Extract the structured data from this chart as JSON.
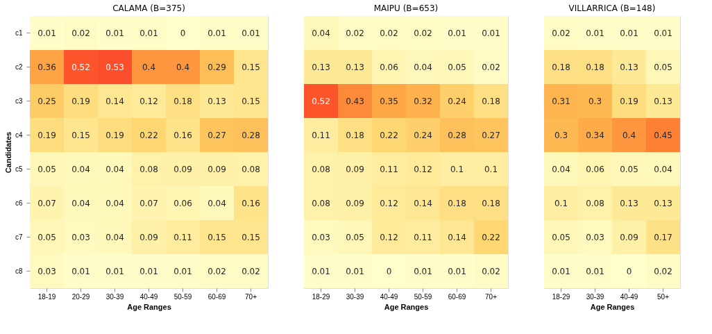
{
  "chart_data": [
    {
      "type": "heatmap",
      "title": "CALAMA (B=375)",
      "xlabel": "Age Ranges",
      "ylabel": "Candidates",
      "data_labels": true,
      "categories": [
        "18-19",
        "20-29",
        "30-39",
        "40-49",
        "50-59",
        "60-69",
        "70+"
      ],
      "y_categories": [
        "c1",
        "c2",
        "c3",
        "c4",
        "c5",
        "c6",
        "c7",
        "c8"
      ],
      "cells": [
        [
          0.01,
          0.02,
          0.01,
          0.01,
          0,
          0.01,
          0.01
        ],
        [
          0.36,
          0.52,
          0.53,
          0.4,
          0.4,
          0.29,
          0.15
        ],
        [
          0.25,
          0.19,
          0.14,
          0.12,
          0.18,
          0.13,
          0.15
        ],
        [
          0.19,
          0.15,
          0.19,
          0.22,
          0.16,
          0.27,
          0.28
        ],
        [
          0.05,
          0.04,
          0.04,
          0.08,
          0.09,
          0.09,
          0.08
        ],
        [
          0.07,
          0.04,
          0.04,
          0.07,
          0.06,
          0.04,
          0.16
        ],
        [
          0.05,
          0.03,
          0.04,
          0.09,
          0.11,
          0.15,
          0.15
        ],
        [
          0.03,
          0.01,
          0.01,
          0.01,
          0.01,
          0.02,
          0.02
        ]
      ]
    },
    {
      "type": "heatmap",
      "title": "MAIPU (B=653)",
      "xlabel": "Age Ranges",
      "data_labels": true,
      "tick_labels": "x",
      "categories": [
        "18-29",
        "30-39",
        "40-49",
        "50-59",
        "60-69",
        "70+"
      ],
      "y_categories": [
        "c1",
        "c2",
        "c3",
        "c4",
        "c5",
        "c6",
        "c7",
        "c8"
      ],
      "cells": [
        [
          0.04,
          0.02,
          0.02,
          0.02,
          0.01,
          0.01
        ],
        [
          0.13,
          0.13,
          0.06,
          0.04,
          0.05,
          0.02
        ],
        [
          0.52,
          0.43,
          0.35,
          0.32,
          0.24,
          0.18
        ],
        [
          0.11,
          0.18,
          0.22,
          0.24,
          0.28,
          0.27
        ],
        [
          0.08,
          0.09,
          0.11,
          0.12,
          0.1,
          0.1
        ],
        [
          0.08,
          0.09,
          0.12,
          0.14,
          0.18,
          0.18
        ],
        [
          0.03,
          0.05,
          0.12,
          0.11,
          0.14,
          0.22
        ],
        [
          0.01,
          0.01,
          0,
          0.01,
          0.01,
          0.02
        ]
      ]
    },
    {
      "type": "heatmap",
      "title": "VILLARRICA (B=148)",
      "xlabel": "Age Ranges",
      "data_labels": true,
      "tick_labels": "x",
      "categories": [
        "18-29",
        "30-39",
        "40-49",
        "50+"
      ],
      "y_categories": [
        "c1",
        "c2",
        "c3",
        "c4",
        "c5",
        "c6",
        "c7",
        "c8"
      ],
      "cells": [
        [
          0.02,
          0.01,
          0.01,
          0.01
        ],
        [
          0.18,
          0.18,
          0.13,
          0.05
        ],
        [
          0.31,
          0.3,
          0.19,
          0.13
        ],
        [
          0.3,
          0.34,
          0.4,
          0.45
        ],
        [
          0.04,
          0.06,
          0.05,
          0.04
        ],
        [
          0.1,
          0.08,
          0.13,
          0.13
        ],
        [
          0.05,
          0.03,
          0.09,
          0.17
        ],
        [
          0.01,
          0.01,
          0,
          0.02
        ]
      ]
    }
  ]
}
